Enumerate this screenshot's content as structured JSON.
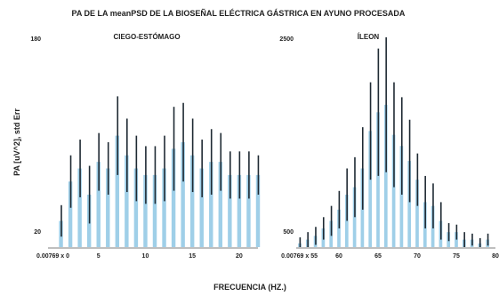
{
  "figure": {
    "title": "PA DE  LA meanPSD DE LA BIOSEÑAL ELÉCTRICA GÁSTRICA EN AYUNO PROCESADA",
    "xlabel": "FRECUENCIA (HZ.)",
    "ylabel": "PA [uV^2], std Err"
  },
  "colors": {
    "bar": "#9fcfe8",
    "error": "#1f2a33",
    "text": "#222222"
  },
  "chart_data": [
    {
      "type": "bar",
      "title": "CIEGO-ESTÓMAGO",
      "ylabel": "PA [uV^2], std Err",
      "ylim": [
        20,
        180
      ],
      "yticks": [
        "180",
        "20"
      ],
      "xlim": [
        0,
        22
      ],
      "xticks": [
        {
          "value": 0,
          "label": "0.00769 x 0"
        },
        {
          "value": 5,
          "label": "5"
        },
        {
          "value": 10,
          "label": "10"
        },
        {
          "value": 15,
          "label": "15"
        },
        {
          "value": 20,
          "label": "20"
        }
      ],
      "x": [
        1,
        2,
        3,
        4,
        5,
        6,
        7,
        8,
        9,
        10,
        11,
        12,
        13,
        14,
        15,
        16,
        17,
        18,
        19,
        20,
        21,
        22
      ],
      "values": [
        40,
        70,
        80,
        60,
        85,
        80,
        105,
        90,
        80,
        75,
        75,
        80,
        95,
        100,
        90,
        80,
        85,
        85,
        75,
        75,
        75,
        75
      ],
      "errors": [
        12,
        20,
        22,
        22,
        22,
        20,
        30,
        28,
        25,
        22,
        22,
        25,
        32,
        30,
        28,
        22,
        25,
        22,
        18,
        18,
        18,
        15
      ]
    },
    {
      "type": "bar",
      "title": "ÍLEON",
      "ylim": [
        200,
        3000
      ],
      "yticks": [
        "2500",
        "500"
      ],
      "xlim": [
        55,
        80
      ],
      "xticks": [
        {
          "value": 55,
          "label": "0.00769 x 55"
        },
        {
          "value": 60,
          "label": "60"
        },
        {
          "value": 65,
          "label": "65"
        },
        {
          "value": 70,
          "label": "70"
        },
        {
          "value": 75,
          "label": "75"
        },
        {
          "value": 80,
          "label": "80"
        }
      ],
      "x": [
        55,
        56,
        57,
        58,
        59,
        60,
        61,
        62,
        63,
        64,
        65,
        66,
        67,
        68,
        69,
        70,
        71,
        72,
        73,
        74,
        75,
        76,
        77,
        78,
        79
      ],
      "values": [
        250,
        300,
        350,
        450,
        550,
        700,
        900,
        1000,
        1250,
        1750,
        2000,
        2100,
        1700,
        1550,
        1350,
        1100,
        800,
        750,
        550,
        400,
        400,
        300,
        300,
        250,
        300
      ],
      "errors": [
        80,
        100,
        120,
        150,
        200,
        250,
        350,
        400,
        550,
        650,
        850,
        900,
        700,
        650,
        550,
        350,
        350,
        300,
        250,
        120,
        100,
        100,
        80,
        70,
        80
      ]
    }
  ]
}
